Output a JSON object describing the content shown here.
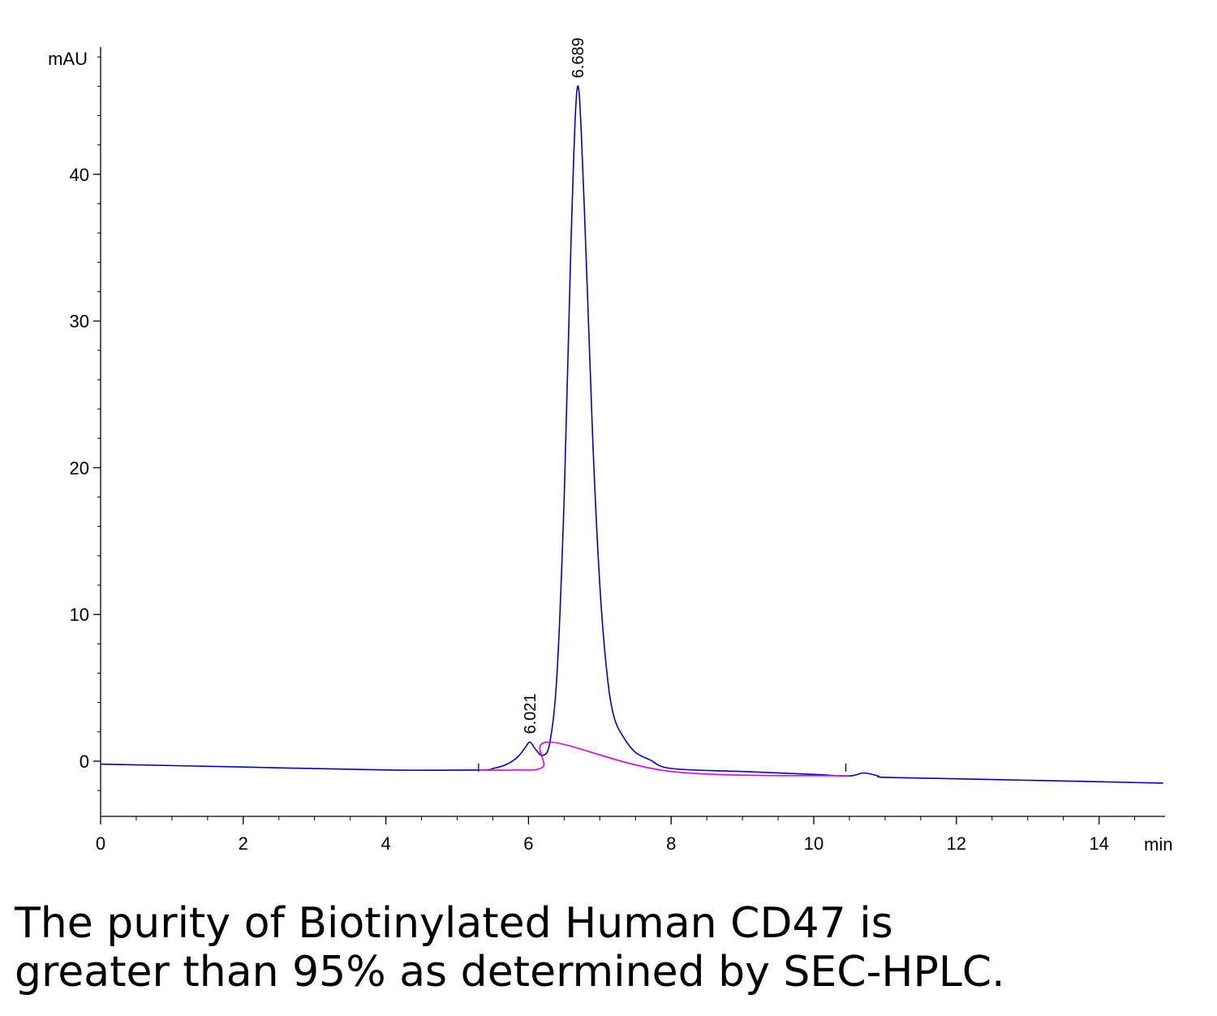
{
  "chart_data": {
    "type": "line",
    "title": "",
    "xlabel": "min",
    "ylabel": "mAU",
    "xlim": [
      0,
      14.9
    ],
    "ylim": [
      -3.8,
      48
    ],
    "x_ticks": [
      0,
      2,
      4,
      6,
      8,
      10,
      12,
      14
    ],
    "y_ticks": [
      0,
      10,
      20,
      30,
      40
    ],
    "x_minor_step": 0.5,
    "y_minor_step": 2,
    "grid": false,
    "colors": {
      "signal": "#0000cc",
      "baseline": "#e000e0",
      "axis": "#000000"
    },
    "series": [
      {
        "kind": "signal",
        "x": [
          0,
          2,
          4,
          5.3,
          5.5,
          5.7,
          5.85,
          5.95,
          6.02,
          6.1,
          6.2,
          6.3,
          6.4,
          6.5,
          6.6,
          6.689,
          6.78,
          6.9,
          7.0,
          7.1,
          7.2,
          7.35,
          7.5,
          7.7,
          8,
          9,
          10,
          10.5,
          10.7,
          10.9,
          11,
          12,
          13,
          14,
          14.9
        ],
        "y": [
          -0.2,
          -0.4,
          -0.6,
          -0.6,
          -0.5,
          -0.2,
          0.3,
          0.9,
          1.3,
          0.8,
          0.4,
          1.3,
          6,
          18,
          36,
          46,
          38,
          22,
          12,
          6,
          3,
          1.5,
          0.6,
          0.1,
          -0.5,
          -0.7,
          -0.9,
          -1.0,
          -0.8,
          -1.0,
          -1.1,
          -1.2,
          -1.3,
          -1.4,
          -1.5
        ]
      },
      {
        "kind": "integration-baseline",
        "x": [
          5.3,
          5.8,
          6.2,
          6.3,
          8,
          10.5
        ],
        "y": [
          -0.6,
          -0.6,
          -0.4,
          1.3,
          -0.7,
          -1.0
        ]
      }
    ],
    "peaks": [
      {
        "rt": 6.021,
        "label": "6.021",
        "height": 1.3
      },
      {
        "rt": 6.689,
        "label": "6.689",
        "height": 46
      }
    ],
    "integration_markers": [
      5.3,
      10.45
    ]
  },
  "caption": {
    "line1": "The purity of Biotinylated Human CD47 is",
    "line2": "greater than 95% as determined by SEC-HPLC."
  }
}
